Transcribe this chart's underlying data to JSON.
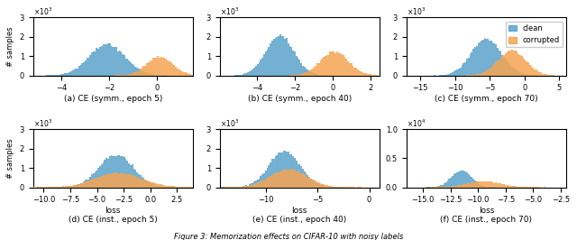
{
  "subplots": [
    {
      "title": "(a) CE (symm., epoch 5)",
      "xlim": [
        -5.2,
        1.5
      ],
      "ylim": [
        0,
        3000
      ],
      "ytick_scale": 1000,
      "yticks": [
        0,
        1000,
        2000,
        3000
      ],
      "xticks": [
        -4,
        -2,
        0
      ],
      "clean_mean": -2.1,
      "clean_std": 0.75,
      "clean_n": 45000,
      "corr_mean": 0.1,
      "corr_std": 0.55,
      "corr_n": 20000
    },
    {
      "title": "(b) CE (symm., epoch 40)",
      "xlim": [
        -6.0,
        2.5
      ],
      "ylim": [
        0,
        3000
      ],
      "ytick_scale": 1000,
      "yticks": [
        0,
        1000,
        2000,
        3000
      ],
      "xticks": [
        -4,
        -2,
        0,
        2
      ],
      "clean_mean": -2.8,
      "clean_std": 0.75,
      "clean_n": 45000,
      "corr_mean": 0.1,
      "corr_std": 0.75,
      "corr_n": 27000
    },
    {
      "title": "(c) CE (symm., epoch 70)",
      "xlim": [
        -17.0,
        6.0
      ],
      "ylim": [
        0,
        3000
      ],
      "ytick_scale": 1000,
      "yticks": [
        0,
        1000,
        2000,
        3000
      ],
      "xticks": [
        -15,
        -10,
        -5,
        0,
        5
      ],
      "clean_mean": -5.5,
      "clean_std": 2.2,
      "clean_n": 45000,
      "corr_mean": -1.8,
      "corr_std": 2.0,
      "corr_n": 28000,
      "legend": true
    },
    {
      "title": "(d) CE (inst., epoch 5)",
      "xlim": [
        -11.0,
        4.0
      ],
      "ylim": [
        0,
        3000
      ],
      "ytick_scale": 1000,
      "yticks": [
        0,
        1000,
        2000,
        3000
      ],
      "xticks": [
        -10.0,
        -7.5,
        -5.0,
        -2.5,
        0.0,
        2.5
      ],
      "clean_mean": -3.2,
      "clean_std": 1.6,
      "clean_n": 45000,
      "corr_mean": -3.0,
      "corr_std": 2.2,
      "corr_n": 27000,
      "xlabel": "loss"
    },
    {
      "title": "(e) CE (inst., epoch 40)",
      "xlim": [
        -14.5,
        1.0
      ],
      "ylim": [
        0,
        3000
      ],
      "ytick_scale": 1000,
      "yticks": [
        0,
        1000,
        2000,
        3000
      ],
      "xticks": [
        -10,
        -5,
        0
      ],
      "clean_mean": -8.2,
      "clean_std": 1.5,
      "clean_n": 45000,
      "corr_mean": -7.8,
      "corr_std": 1.8,
      "corr_n": 27000,
      "xlabel": "loss"
    },
    {
      "title": "(f) CE (inst., epoch 70)",
      "xlim": [
        -16.5,
        -2.0
      ],
      "ylim": [
        0,
        10000
      ],
      "ytick_scale": 10000,
      "yticks": [
        0,
        5000,
        10000
      ],
      "xticks": [
        -15,
        -12.5,
        -10,
        -7.5,
        -5.0,
        -2.5
      ],
      "clean_mean": -11.5,
      "clean_std": 0.9,
      "clean_n": 45000,
      "corr_mean": -9.5,
      "corr_std": 1.5,
      "corr_n": 27000,
      "xlabel": "loss"
    }
  ],
  "clean_color": "#5ba3cb",
  "corr_color": "#f5a553",
  "figure_caption": "Figure 3: Memorization effects on CIFAR-10 with noisy labels",
  "ylabel": "# samples",
  "bins": 100
}
